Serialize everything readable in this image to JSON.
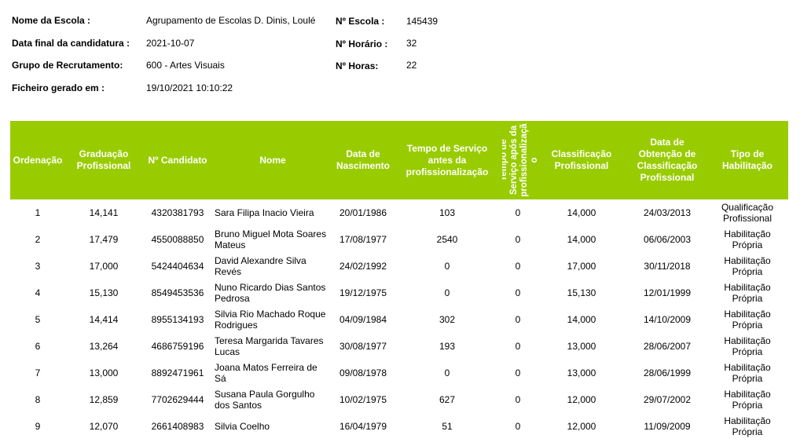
{
  "info": {
    "escola_label": "Nome da Escola :",
    "escola_value": "Agrupamento de Escolas D. Dinis, Loulé",
    "data_final_label": "Data final da candidatura :",
    "data_final_value": "2021-10-07",
    "grupo_label": "Grupo de Recrutamento:",
    "grupo_value": "600 - Artes Visuais",
    "ficheiro_label": "Ficheiro gerado em :",
    "ficheiro_value": "19/10/2021 10:10:22",
    "n_escola_label": "Nº Escola :",
    "n_escola_value": "145439",
    "n_horario_label": "Nº Horário :",
    "n_horario_value": "32",
    "n_horas_label": "Nº Horas:",
    "n_horas_value": "22"
  },
  "table": {
    "header_color": "#99cc00",
    "headers": {
      "ordenacao": "Ordenação",
      "graduacao": "Graduação Profissional",
      "candidato": "Nº Candidato",
      "nome": "Nome",
      "nascimento": "Data de Nascimento",
      "tempo_antes": "Tempo de Serviço antes da profissionalização",
      "tempo_apos": "Tempo de Serviço após da profissionalizaçã o",
      "classificacao": "Classificação Profissional",
      "data_obtencao": "Data de Obtenção de Classificação Profissional",
      "tipo": "Tipo de Habilitação"
    },
    "rows": [
      {
        "ordem": "1",
        "graduacao": "14,141",
        "candidato": "4320381793",
        "nome": "Sara Filipa Inacio Vieira",
        "nascimento": "20/01/1986",
        "tempo_antes": "103",
        "tempo_apos": "0",
        "classificacao": "14,000",
        "data_obtencao": "24/03/2013",
        "tipo": "Qualificação Profissional"
      },
      {
        "ordem": "2",
        "graduacao": "17,479",
        "candidato": "4550088850",
        "nome": "Bruno Miguel Mota Soares Mateus",
        "nascimento": "17/08/1977",
        "tempo_antes": "2540",
        "tempo_apos": "0",
        "classificacao": "14,000",
        "data_obtencao": "06/06/2003",
        "tipo": "Habilitação Própria"
      },
      {
        "ordem": "3",
        "graduacao": "17,000",
        "candidato": "5424404634",
        "nome": "David Alexandre Silva Revés",
        "nascimento": "24/02/1992",
        "tempo_antes": "0",
        "tempo_apos": "0",
        "classificacao": "17,000",
        "data_obtencao": "30/11/2018",
        "tipo": "Habilitação Própria"
      },
      {
        "ordem": "4",
        "graduacao": "15,130",
        "candidato": "8549453536",
        "nome": "Nuno Ricardo Dias Santos Pedrosa",
        "nascimento": "19/12/1975",
        "tempo_antes": "0",
        "tempo_apos": "0",
        "classificacao": "15,130",
        "data_obtencao": "12/01/1999",
        "tipo": "Habilitação Própria"
      },
      {
        "ordem": "5",
        "graduacao": "14,414",
        "candidato": "8955134193",
        "nome": "Silvia Rio Machado Roque Rodrigues",
        "nascimento": "04/09/1984",
        "tempo_antes": "302",
        "tempo_apos": "0",
        "classificacao": "14,000",
        "data_obtencao": "14/10/2009",
        "tipo": "Habilitação Própria"
      },
      {
        "ordem": "6",
        "graduacao": "13,264",
        "candidato": "4686759196",
        "nome": "Teresa Margarida Tavares Lucas",
        "nascimento": "30/08/1977",
        "tempo_antes": "193",
        "tempo_apos": "0",
        "classificacao": "13,000",
        "data_obtencao": "28/06/2007",
        "tipo": "Habilitação Própria"
      },
      {
        "ordem": "7",
        "graduacao": "13,000",
        "candidato": "8892471961",
        "nome": "Joana Matos Ferreira de Sá",
        "nascimento": "09/08/1978",
        "tempo_antes": "0",
        "tempo_apos": "0",
        "classificacao": "13,000",
        "data_obtencao": "28/06/1999",
        "tipo": "Habilitação Própria"
      },
      {
        "ordem": "8",
        "graduacao": "12,859",
        "candidato": "7702629444",
        "nome": "Susana Paula Gorgulho dos Santos",
        "nascimento": "10/02/1975",
        "tempo_antes": "627",
        "tempo_apos": "0",
        "classificacao": "12,000",
        "data_obtencao": "29/07/2002",
        "tipo": "Habilitação Própria"
      },
      {
        "ordem": "9",
        "graduacao": "12,070",
        "candidato": "2661408983",
        "nome": "Silvia Coelho",
        "nascimento": "16/04/1979",
        "tempo_antes": "51",
        "tempo_apos": "0",
        "classificacao": "12,000",
        "data_obtencao": "11/09/2009",
        "tipo": "Habilitação Própria"
      }
    ]
  }
}
